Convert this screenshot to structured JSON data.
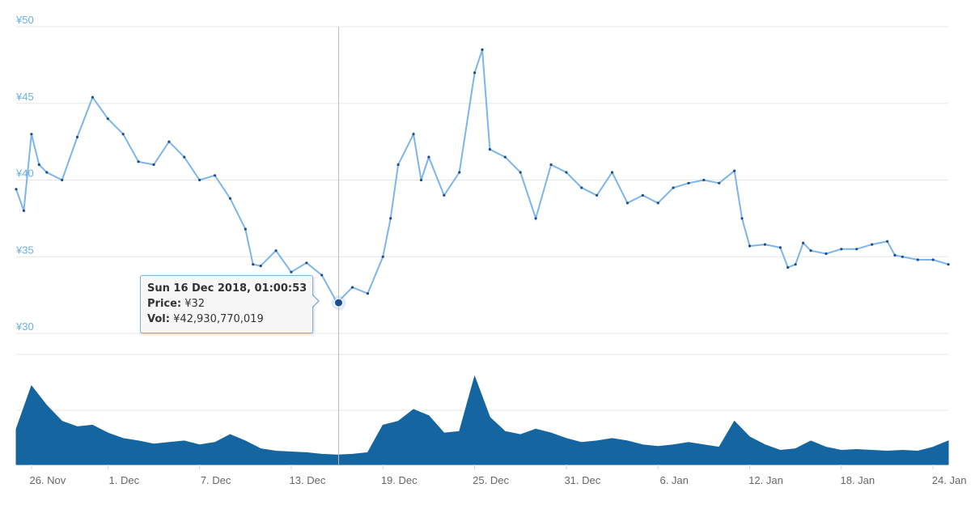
{
  "chart_data": {
    "type": "line",
    "price_axis": {
      "ylim": [
        30,
        50
      ],
      "tick_labels": [
        "¥30",
        "¥35",
        "¥40",
        "¥45",
        "¥50"
      ],
      "ticks": [
        30,
        35,
        40,
        45,
        50
      ]
    },
    "x_axis": {
      "range": [
        "2018-11-25",
        "2019-01-25"
      ],
      "tick_labels": [
        "26. Nov",
        "1. Dec",
        "7. Dec",
        "13. Dec",
        "19. Dec",
        "25. Dec",
        "31. Dec",
        "6. Jan",
        "12. Jan",
        "18. Jan",
        "24. Jan"
      ],
      "tick_dates": [
        "2018-11-26",
        "2018-12-01",
        "2018-12-07",
        "2018-12-13",
        "2018-12-19",
        "2018-12-25",
        "2018-12-31",
        "2019-01-06",
        "2019-01-12",
        "2019-01-18",
        "2019-01-24"
      ]
    },
    "series": [
      {
        "values_note": "price",
        "color": "#7cb5ec",
        "marker_color": "#1d4e89",
        "points": [
          [
            "2018-11-25",
            39.4
          ],
          [
            "2018-11-25",
            38.0
          ],
          [
            "2018-11-26",
            43.0
          ],
          [
            "2018-11-26",
            41.0
          ],
          [
            "2018-11-27",
            40.5
          ],
          [
            "2018-11-28",
            40.0
          ],
          [
            "2018-11-29",
            42.8
          ],
          [
            "2018-11-30",
            45.4
          ],
          [
            "2018-12-01",
            44.0
          ],
          [
            "2018-12-02",
            43.0
          ],
          [
            "2018-12-03",
            41.2
          ],
          [
            "2018-12-04",
            41.0
          ],
          [
            "2018-12-05",
            42.5
          ],
          [
            "2018-12-06",
            41.5
          ],
          [
            "2018-12-07",
            40.0
          ],
          [
            "2018-12-08",
            40.3
          ],
          [
            "2018-12-09",
            38.8
          ],
          [
            "2018-12-10",
            36.8
          ],
          [
            "2018-12-10",
            34.5
          ],
          [
            "2018-12-11",
            34.4
          ],
          [
            "2018-12-12",
            35.4
          ],
          [
            "2018-12-13",
            34.0
          ],
          [
            "2018-12-14",
            34.6
          ],
          [
            "2018-12-15",
            33.8
          ],
          [
            "2018-12-16",
            32.0
          ],
          [
            "2018-12-17",
            33.0
          ],
          [
            "2018-12-18",
            32.6
          ],
          [
            "2018-12-19",
            35.0
          ],
          [
            "2018-12-19",
            37.5
          ],
          [
            "2018-12-20",
            41.0
          ],
          [
            "2018-12-21",
            43.0
          ],
          [
            "2018-12-21",
            40.0
          ],
          [
            "2018-12-22",
            41.5
          ],
          [
            "2018-12-23",
            39.0
          ],
          [
            "2018-12-24",
            40.5
          ],
          [
            "2018-12-25",
            47.0
          ],
          [
            "2018-12-25",
            48.5
          ],
          [
            "2018-12-26",
            42.0
          ],
          [
            "2018-12-27",
            41.5
          ],
          [
            "2018-12-28",
            40.5
          ],
          [
            "2018-12-29",
            37.5
          ],
          [
            "2018-12-30",
            41.0
          ],
          [
            "2018-12-31",
            40.5
          ],
          [
            "2019-01-01",
            39.5
          ],
          [
            "2019-01-02",
            39.0
          ],
          [
            "2019-01-03",
            40.5
          ],
          [
            "2019-01-04",
            38.5
          ],
          [
            "2019-01-05",
            39.0
          ],
          [
            "2019-01-06",
            38.5
          ],
          [
            "2019-01-07",
            39.5
          ],
          [
            "2019-01-08",
            39.8
          ],
          [
            "2019-01-09",
            40.0
          ],
          [
            "2019-01-10",
            39.8
          ],
          [
            "2019-01-11",
            40.6
          ],
          [
            "2019-01-11",
            37.5
          ],
          [
            "2019-01-12",
            35.7
          ],
          [
            "2019-01-13",
            35.8
          ],
          [
            "2019-01-14",
            35.6
          ],
          [
            "2019-01-14",
            34.3
          ],
          [
            "2019-01-15",
            34.5
          ],
          [
            "2019-01-15",
            35.9
          ],
          [
            "2019-01-16",
            35.4
          ],
          [
            "2019-01-17",
            35.2
          ],
          [
            "2019-01-18",
            35.5
          ],
          [
            "2019-01-19",
            35.5
          ],
          [
            "2019-01-20",
            35.8
          ],
          [
            "2019-01-21",
            36.0
          ],
          [
            "2019-01-21",
            35.1
          ],
          [
            "2019-01-22",
            35.0
          ],
          [
            "2019-01-23",
            34.8
          ],
          [
            "2019-01-24",
            34.8
          ],
          [
            "2019-01-25",
            34.5
          ]
        ]
      },
      {
        "values_note": "volume",
        "color": "#1565a0",
        "points": [
          [
            "2018-11-25",
            45
          ],
          [
            "2018-11-26",
            100
          ],
          [
            "2018-11-27",
            75
          ],
          [
            "2018-11-28",
            55
          ],
          [
            "2018-11-29",
            48
          ],
          [
            "2018-11-30",
            50
          ],
          [
            "2018-12-01",
            40
          ],
          [
            "2018-12-02",
            33
          ],
          [
            "2018-12-03",
            30
          ],
          [
            "2018-12-04",
            26
          ],
          [
            "2018-12-05",
            28
          ],
          [
            "2018-12-06",
            30
          ],
          [
            "2018-12-07",
            25
          ],
          [
            "2018-12-08",
            28
          ],
          [
            "2018-12-09",
            38
          ],
          [
            "2018-12-10",
            30
          ],
          [
            "2018-12-11",
            20
          ],
          [
            "2018-12-12",
            17
          ],
          [
            "2018-12-13",
            16
          ],
          [
            "2018-12-14",
            15
          ],
          [
            "2018-12-15",
            13
          ],
          [
            "2018-12-16",
            12
          ],
          [
            "2018-12-17",
            13
          ],
          [
            "2018-12-18",
            15
          ],
          [
            "2018-12-19",
            50
          ],
          [
            "2018-12-20",
            55
          ],
          [
            "2018-12-21",
            70
          ],
          [
            "2018-12-22",
            62
          ],
          [
            "2018-12-23",
            40
          ],
          [
            "2018-12-24",
            42
          ],
          [
            "2018-12-25",
            112
          ],
          [
            "2018-12-26",
            60
          ],
          [
            "2018-12-27",
            42
          ],
          [
            "2018-12-28",
            38
          ],
          [
            "2018-12-29",
            45
          ],
          [
            "2018-12-30",
            40
          ],
          [
            "2018-12-31",
            33
          ],
          [
            "2019-01-01",
            28
          ],
          [
            "2019-01-02",
            30
          ],
          [
            "2019-01-03",
            33
          ],
          [
            "2019-01-04",
            30
          ],
          [
            "2019-01-05",
            25
          ],
          [
            "2019-01-06",
            23
          ],
          [
            "2019-01-07",
            25
          ],
          [
            "2019-01-08",
            28
          ],
          [
            "2019-01-09",
            25
          ],
          [
            "2019-01-10",
            22
          ],
          [
            "2019-01-11",
            55
          ],
          [
            "2019-01-12",
            35
          ],
          [
            "2019-01-13",
            25
          ],
          [
            "2019-01-14",
            18
          ],
          [
            "2019-01-15",
            20
          ],
          [
            "2019-01-16",
            30
          ],
          [
            "2019-01-17",
            22
          ],
          [
            "2019-01-18",
            18
          ],
          [
            "2019-01-19",
            19
          ],
          [
            "2019-01-20",
            18
          ],
          [
            "2019-01-21",
            17
          ],
          [
            "2019-01-22",
            18
          ],
          [
            "2019-01-23",
            17
          ],
          [
            "2019-01-24",
            22
          ],
          [
            "2019-01-25",
            30
          ]
        ]
      }
    ],
    "highlight": {
      "date": "2018-12-16",
      "price": 32
    },
    "legend": "none",
    "grid": true
  },
  "tooltip": {
    "date_text": "Sun 16 Dec 2018, 01:00:53",
    "price_label": "Price:",
    "price_value": "¥32",
    "vol_label": "Vol:",
    "vol_value": "¥42,930,770,019"
  }
}
